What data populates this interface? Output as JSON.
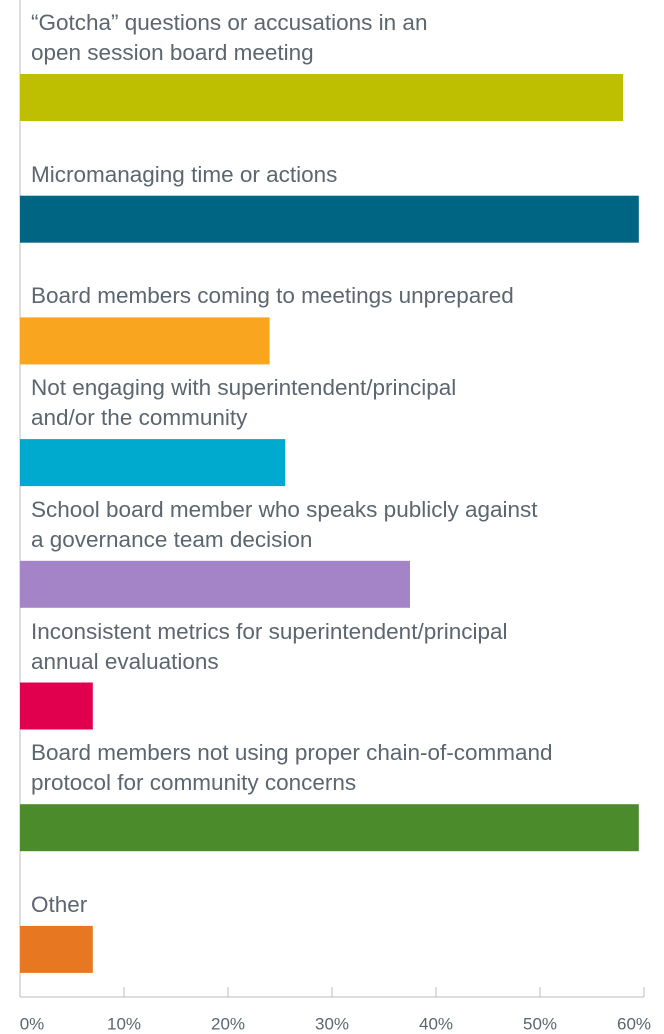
{
  "chart_data": {
    "type": "bar",
    "orientation": "horizontal",
    "categories": [
      "“Gotcha” questions or accusations in an\nopen session board meeting",
      "Micromanaging time or actions",
      "Board members coming to meetings unprepared",
      "Not engaging with superintendent/principal\nand/or the community",
      "School board member who speaks publicly against\na governance team decision",
      "Inconsistent metrics for superintendent/principal\nannual evaluations",
      "Board members not using proper chain-of-command\nprotocol for community concerns",
      "Other"
    ],
    "values": [
      58,
      59.5,
      24,
      25.5,
      37.5,
      7,
      59.5,
      7
    ],
    "colors": [
      "#bdbf00",
      "#006583",
      "#f9a51f",
      "#00a9ce",
      "#a583c7",
      "#e0004d",
      "#4b8b2b",
      "#e87722"
    ],
    "xlim": [
      0,
      60
    ],
    "xticks": [
      {
        "value": 0,
        "label": "0%"
      },
      {
        "value": 10,
        "label": "10%"
      },
      {
        "value": 20,
        "label": "20%"
      },
      {
        "value": 30,
        "label": "30%"
      },
      {
        "value": 40,
        "label": "40%"
      },
      {
        "value": 50,
        "label": "50%"
      },
      {
        "value": 60,
        "label": "60%"
      }
    ]
  }
}
